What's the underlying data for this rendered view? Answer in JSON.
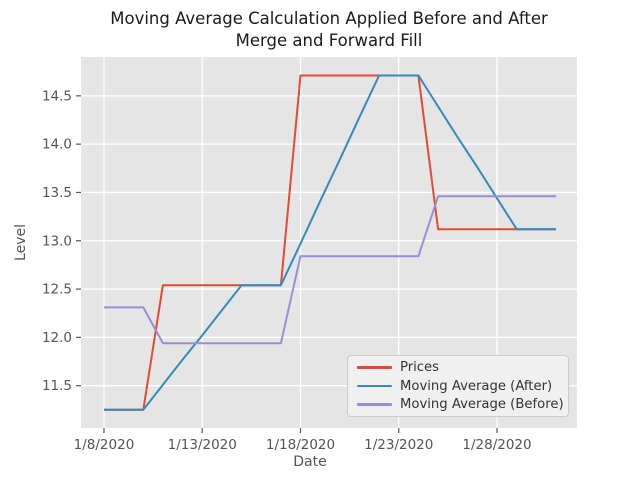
{
  "title": {
    "line1": "Moving Average Calculation Applied Before and After",
    "line2": "Merge and Forward Fill"
  },
  "axes": {
    "x_label": "Date",
    "y_label": "Level"
  },
  "legend": {
    "position": "lower right",
    "items": [
      {
        "label": "Prices",
        "color": "#E24A33"
      },
      {
        "label": "Moving Average (After)",
        "color": "#348ABD"
      },
      {
        "label": "Moving Average (Before)",
        "color": "#988ED5"
      }
    ]
  },
  "colors": {
    "figure_bg": "#FFFFFF",
    "plot_bg": "#E5E5E5",
    "grid": "#FFFFFF",
    "tick_color": "#555555",
    "axis_label_color": "#555555",
    "title_color": "#1A1A1A"
  },
  "chart_data": {
    "type": "line",
    "title": "Moving Average Calculation Applied Before and After Merge and Forward Fill",
    "xlabel": "Date",
    "ylabel": "Level",
    "grid": true,
    "legend_position": "lower right",
    "start_date": "1/8/2020",
    "end_date": "1/31/2020",
    "x_days": [
      8,
      9,
      10,
      11,
      12,
      13,
      14,
      15,
      16,
      17,
      18,
      19,
      20,
      21,
      22,
      23,
      24,
      25,
      26,
      27,
      28,
      29,
      30,
      31
    ],
    "x_tick_days": [
      8,
      13,
      18,
      23,
      28
    ],
    "x_tick_labels": [
      "1/8/2020",
      "1/13/2020",
      "1/18/2020",
      "1/23/2020",
      "1/28/2020"
    ],
    "y_ticks": [
      11.5,
      12.0,
      12.5,
      13.0,
      13.5,
      14.0,
      14.5
    ],
    "y_tick_labels": [
      "11.5",
      "12.0",
      "12.5",
      "13.0",
      "13.5",
      "14.0",
      "14.5"
    ],
    "xlim_days": [
      6.83,
      32.07
    ],
    "ylim": [
      11.062,
      14.902
    ],
    "series": [
      {
        "name": "Prices",
        "color": "#E24A33",
        "values": [
          11.25,
          11.25,
          11.25,
          12.54,
          12.54,
          12.54,
          12.54,
          12.54,
          12.54,
          12.54,
          14.71,
          14.71,
          14.71,
          14.71,
          14.71,
          14.71,
          14.71,
          13.12,
          13.12,
          13.12,
          13.12,
          13.12,
          13.12,
          13.12
        ]
      },
      {
        "name": "Moving Average (After)",
        "color": "#348ABD",
        "values": [
          11.25,
          11.25,
          11.25,
          11.51,
          11.77,
          12.02,
          12.28,
          12.54,
          12.54,
          12.54,
          12.97,
          13.41,
          13.84,
          14.28,
          14.71,
          14.71,
          14.71,
          14.39,
          14.07,
          13.76,
          13.44,
          13.12,
          13.12,
          13.12
        ]
      },
      {
        "name": "Moving Average (Before)",
        "color": "#988ED5",
        "values": [
          12.31,
          12.31,
          12.31,
          11.94,
          11.94,
          11.94,
          11.94,
          11.94,
          11.94,
          11.94,
          12.84,
          12.84,
          12.84,
          12.84,
          12.84,
          12.84,
          12.84,
          13.46,
          13.46,
          13.46,
          13.46,
          13.46,
          13.46,
          13.46
        ]
      }
    ]
  }
}
